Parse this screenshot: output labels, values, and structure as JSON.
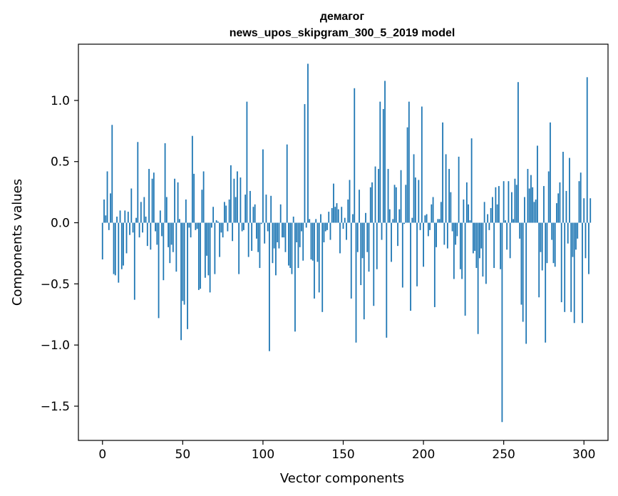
{
  "chart_data": {
    "type": "bar",
    "title_line1": "демагог",
    "title_line2": "news_upos_skipgram_300_5_2019 model",
    "xlabel": "Vector components",
    "ylabel": "Components values",
    "xlim": [
      -15,
      315
    ],
    "ylim": [
      -1.78,
      1.46
    ],
    "xticks": [
      0,
      50,
      100,
      150,
      200,
      250,
      300
    ],
    "xtick_labels": [
      "0",
      "50",
      "100",
      "150",
      "200",
      "250",
      "300"
    ],
    "yticks": [
      -1.5,
      -1.0,
      -0.5,
      0.0,
      0.5,
      1.0
    ],
    "ytick_labels": [
      "−1.5",
      "−1.0",
      "−0.5",
      "0.0",
      "0.5",
      "1.0"
    ],
    "bar_color": "#1f77b4",
    "values": [
      -0.3,
      0.19,
      0.06,
      0.42,
      -0.06,
      0.24,
      0.8,
      -0.42,
      -0.43,
      0.05,
      -0.49,
      0.1,
      -0.38,
      -0.35,
      0.1,
      -0.25,
      0.09,
      -0.1,
      0.28,
      -0.08,
      -0.63,
      0.04,
      0.66,
      -0.12,
      0.17,
      -0.08,
      0.21,
      0.05,
      -0.19,
      0.44,
      -0.22,
      0.36,
      0.41,
      -0.07,
      -0.18,
      -0.78,
      0.1,
      -0.11,
      -0.47,
      0.65,
      0.21,
      -0.2,
      -0.33,
      -0.18,
      -0.24,
      0.36,
      -0.4,
      0.33,
      0.03,
      -0.96,
      -0.64,
      -0.67,
      0.19,
      -0.87,
      -0.04,
      -0.12,
      0.71,
      0.4,
      -0.06,
      -0.05,
      -0.55,
      -0.54,
      0.27,
      0.42,
      -0.45,
      -0.27,
      -0.43,
      -0.57,
      -0.04,
      0.13,
      -0.42,
      0.02,
      0.01,
      -0.28,
      -0.08,
      -0.12,
      0.17,
      0.14,
      -0.07,
      0.19,
      0.47,
      -0.15,
      0.36,
      0.21,
      0.42,
      -0.42,
      0.37,
      -0.07,
      -0.06,
      0.23,
      0.99,
      -0.28,
      0.26,
      -0.23,
      0.13,
      0.15,
      -0.13,
      -0.24,
      -0.37,
      -0.01,
      0.6,
      -0.17,
      0.23,
      -0.07,
      -1.05,
      0.22,
      -0.33,
      -0.21,
      -0.43,
      -0.16,
      -0.21,
      0.15,
      -0.12,
      -0.12,
      -0.24,
      0.64,
      -0.35,
      -0.37,
      -0.42,
      0.05,
      -0.89,
      -0.16,
      -0.37,
      -0.2,
      -0.07,
      -0.31,
      0.97,
      -0.04,
      1.3,
      0.03,
      -0.3,
      -0.31,
      -0.62,
      0.03,
      -0.32,
      -0.57,
      0.07,
      -0.73,
      -0.16,
      -0.07,
      -0.06,
      0.09,
      -0.14,
      0.12,
      0.32,
      0.13,
      0.16,
      0.11,
      -0.25,
      0.13,
      -0.05,
      0.04,
      -0.14,
      0.19,
      0.35,
      -0.62,
      0.07,
      1.1,
      -0.98,
      -0.24,
      0.27,
      -0.51,
      -0.29,
      -0.79,
      0.08,
      -0.24,
      -0.4,
      0.29,
      0.33,
      -0.68,
      0.46,
      -0.38,
      0.44,
      0.99,
      -0.14,
      0.93,
      1.16,
      -0.94,
      0.44,
      0.11,
      -0.32,
      0.03,
      0.31,
      0.29,
      -0.19,
      0.11,
      0.43,
      -0.53,
      -0.01,
      0.31,
      0.78,
      0.99,
      -0.72,
      0.04,
      0.56,
      0.37,
      -0.52,
      0.35,
      -0.06,
      0.95,
      -0.36,
      0.06,
      0.07,
      -0.11,
      -0.06,
      0.15,
      0.21,
      -0.69,
      -0.2,
      0.03,
      0.03,
      0.17,
      0.82,
      -0.18,
      0.56,
      -0.21,
      0.44,
      0.25,
      -0.07,
      -0.46,
      -0.18,
      -0.11,
      0.54,
      -0.38,
      -0.46,
      0.19,
      -0.76,
      0.33,
      0.15,
      0.02,
      0.69,
      -0.25,
      -0.23,
      -0.37,
      -0.91,
      -0.29,
      -0.21,
      -0.44,
      0.17,
      -0.5,
      0.07,
      -0.06,
      0.12,
      0.21,
      -0.37,
      0.29,
      0.15,
      0.3,
      -0.38,
      -1.63,
      0.34,
      0.02,
      -0.22,
      0.34,
      -0.29,
      0.25,
      0.03,
      0.36,
      0.31,
      1.15,
      -0.13,
      -0.67,
      -0.81,
      0.21,
      -0.99,
      0.44,
      0.28,
      0.39,
      0.29,
      0.17,
      0.19,
      0.63,
      -0.61,
      -0.24,
      -0.39,
      0.3,
      -0.98,
      -0.33,
      0.42,
      0.82,
      -0.14,
      -0.33,
      -0.36,
      0.16,
      0.24,
      0.33,
      -0.65,
      0.58,
      -0.73,
      0.26,
      -0.17,
      0.53,
      -0.73,
      -0.28,
      -0.82,
      -0.22,
      -0.13,
      0.34,
      0.41,
      -0.82,
      0.2,
      -0.29,
      1.19,
      -0.42,
      0.2
    ]
  }
}
